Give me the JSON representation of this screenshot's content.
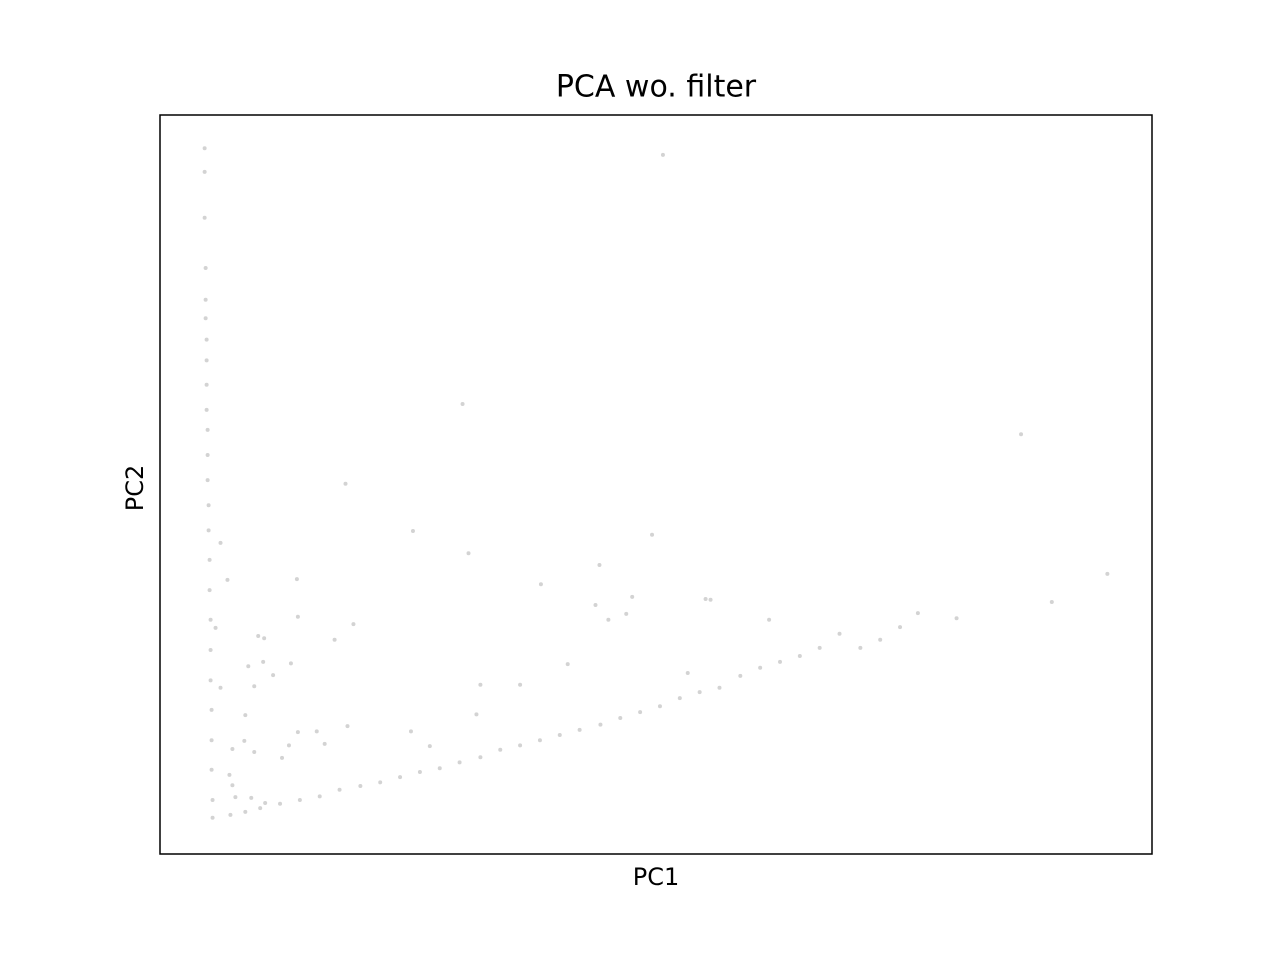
{
  "chart_data": {
    "type": "scatter",
    "title": "PCA wo. filter",
    "x_label": "PC1",
    "y_label": "PC2",
    "color": "#d3d3d3",
    "xlim": [
      0,
      100
    ],
    "ylim": [
      0,
      100
    ],
    "x": [
      4.5,
      4.5,
      4.5,
      4.6,
      4.6,
      4.6,
      4.7,
      4.7,
      4.7,
      4.7,
      4.8,
      4.8,
      4.8,
      4.9,
      4.9,
      5.0,
      5.0,
      5.1,
      5.1,
      5.1,
      5.2,
      5.2,
      5.2,
      5.3,
      5.3,
      7.1,
      8.6,
      10.1,
      12.1,
      14.1,
      16.1,
      18.1,
      20.2,
      22.2,
      24.2,
      26.2,
      28.2,
      30.2,
      32.3,
      34.3,
      36.3,
      38.3,
      40.3,
      42.3,
      44.4,
      46.4,
      48.4,
      50.4,
      52.4,
      54.4,
      56.4,
      58.5,
      60.5,
      62.5,
      64.5,
      66.5,
      68.5,
      70.6,
      72.6,
      74.6,
      76.4,
      80.3,
      89.9,
      95.5,
      50.7,
      30.5,
      86.8,
      18.7,
      25.5,
      31.1,
      49.6,
      38.4,
      44.3,
      43.9,
      47.6,
      55.0,
      55.5,
      45.2,
      47.0,
      61.4,
      13.8,
      13.9,
      6.8,
      6.1,
      19.5,
      17.6,
      9.9,
      10.5,
      5.6,
      10.4,
      13.2,
      8.9,
      11.4,
      6.1,
      9.5,
      32.3,
      36.3,
      41.1,
      53.2,
      31.9,
      25.3,
      18.9,
      15.8,
      16.6,
      13.9,
      13.0,
      8.6,
      8.5,
      7.3,
      9.5,
      12.3,
      27.2,
      7.0,
      7.3,
      7.6,
      9.2,
      10.6
    ],
    "values": [
      95.5,
      92.3,
      86.1,
      79.3,
      75.0,
      72.5,
      69.6,
      66.8,
      63.5,
      60.1,
      57.4,
      54.0,
      50.6,
      47.2,
      43.8,
      39.8,
      35.7,
      31.7,
      27.6,
      23.5,
      19.5,
      15.4,
      11.4,
      7.3,
      4.9,
      5.3,
      5.7,
      6.2,
      6.8,
      7.3,
      7.8,
      8.7,
      9.2,
      9.7,
      10.4,
      11.1,
      11.6,
      12.4,
      13.1,
      14.1,
      14.7,
      15.4,
      16.1,
      16.8,
      17.5,
      18.4,
      19.2,
      20.0,
      21.1,
      21.9,
      22.5,
      24.1,
      25.2,
      26.0,
      26.8,
      27.9,
      29.8,
      27.9,
      29.0,
      30.7,
      32.6,
      31.9,
      34.1,
      37.9,
      94.6,
      60.9,
      56.8,
      50.1,
      43.7,
      40.7,
      43.2,
      36.5,
      39.1,
      33.7,
      34.8,
      34.5,
      34.4,
      31.7,
      32.5,
      31.7,
      37.2,
      32.1,
      37.1,
      42.1,
      31.1,
      29.0,
      29.5,
      29.2,
      30.6,
      26.0,
      25.8,
      25.4,
      24.2,
      22.5,
      22.7,
      22.9,
      22.9,
      25.7,
      24.5,
      18.9,
      16.6,
      17.3,
      16.6,
      14.9,
      16.5,
      14.7,
      18.8,
      15.3,
      14.2,
      13.8,
      13.0,
      14.6,
      10.7,
      9.3,
      7.7,
      7.6,
      6.9
    ]
  }
}
